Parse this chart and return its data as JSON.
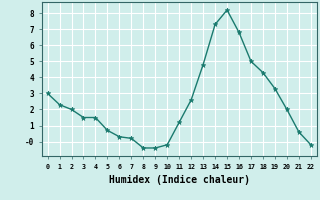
{
  "x": [
    0,
    1,
    2,
    3,
    4,
    5,
    6,
    7,
    8,
    9,
    10,
    11,
    12,
    13,
    14,
    15,
    16,
    17,
    18,
    19,
    20,
    21,
    22
  ],
  "y": [
    3.0,
    2.3,
    2.0,
    1.5,
    1.5,
    0.7,
    0.3,
    0.2,
    -0.4,
    -0.4,
    -0.2,
    1.2,
    2.6,
    4.8,
    7.3,
    8.2,
    6.8,
    5.0,
    4.3,
    3.3,
    2.0,
    0.6,
    -0.2
  ],
  "line_color": "#1a7a6e",
  "marker": "*",
  "marker_size": 3.5,
  "bg_color": "#d0eeeb",
  "grid_color": "#ffffff",
  "xlabel": "Humidex (Indice chaleur)",
  "xlabel_fontsize": 7,
  "yticks": [
    0,
    1,
    2,
    3,
    4,
    5,
    6,
    7,
    8
  ],
  "ytick_labels": [
    "-0",
    "1",
    "2",
    "3",
    "4",
    "5",
    "6",
    "7",
    "8"
  ],
  "ylim": [
    -0.9,
    8.7
  ],
  "xlim": [
    -0.5,
    22.5
  ],
  "xticks": [
    0,
    1,
    2,
    3,
    4,
    5,
    6,
    7,
    8,
    9,
    10,
    11,
    12,
    13,
    14,
    15,
    16,
    17,
    18,
    19,
    20,
    21,
    22
  ]
}
